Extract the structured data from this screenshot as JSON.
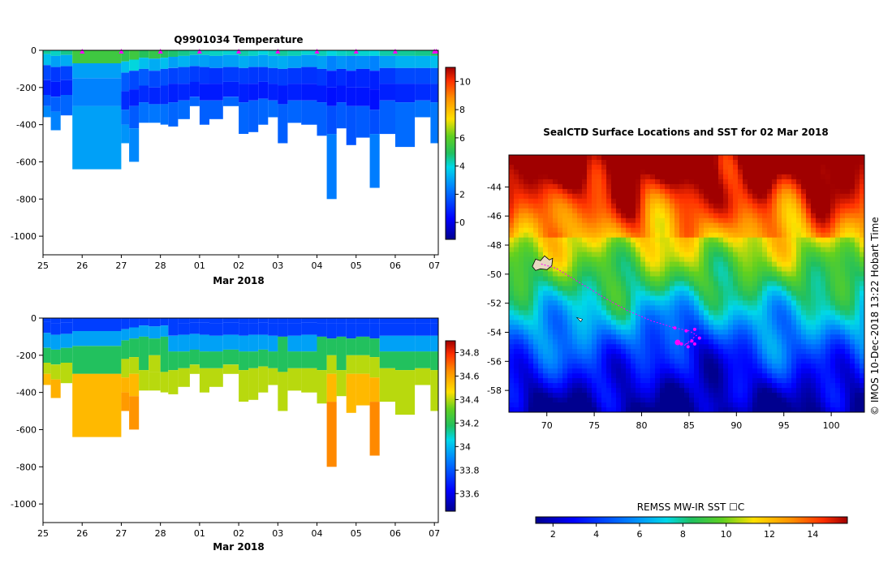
{
  "chart_data": [
    {
      "type": "heatmap",
      "id": "temperature",
      "title": "Q9901034  Temperature",
      "xlabel": "Mar 2018",
      "ylabel": "",
      "x_ticks": [
        "25",
        "26",
        "27",
        "28",
        "01",
        "02",
        "03",
        "04",
        "05",
        "06",
        "07"
      ],
      "x_range": [
        25,
        35.1
      ],
      "ylim": [
        -1100,
        0
      ],
      "y_ticks": [
        0,
        -200,
        -400,
        -600,
        -800,
        -1000
      ],
      "colorbar": {
        "min": -1.2,
        "max": 11,
        "ticks": [
          0,
          2,
          4,
          6,
          8,
          10
        ]
      },
      "profile_markers": [
        26,
        27,
        28,
        29,
        30,
        31,
        32,
        33,
        34,
        35,
        35.05
      ],
      "profiles": [
        {
          "t": 25.0,
          "depth": 360,
          "layers": [
            [
              0,
              4.5
            ],
            [
              20,
              3.5
            ],
            [
              80,
              1.5
            ],
            [
              160,
              0.8
            ],
            [
              240,
              1.8
            ],
            [
              300,
              2.6
            ]
          ]
        },
        {
          "t": 25.2,
          "depth": 430,
          "layers": [
            [
              0,
              4.2
            ],
            [
              30,
              3.0
            ],
            [
              90,
              1.2
            ],
            [
              170,
              0.7
            ],
            [
              250,
              1.9
            ],
            [
              330,
              2.5
            ]
          ]
        },
        {
          "t": 25.45,
          "depth": 350,
          "layers": [
            [
              0,
              4.6
            ],
            [
              25,
              3.2
            ],
            [
              85,
              1.4
            ],
            [
              160,
              0.9
            ],
            [
              240,
              2.0
            ]
          ]
        },
        {
          "t": 25.75,
          "depth": 640,
          "layers": [
            [
              0,
              5.5
            ],
            [
              70,
              3.0
            ],
            [
              150,
              2.5
            ],
            [
              300,
              3.0
            ]
          ]
        },
        {
          "t": 26.1,
          "depth": 640,
          "layers": [
            [
              0,
              5.5
            ],
            [
              70,
              3.0
            ],
            [
              150,
              2.5
            ],
            [
              300,
              3.0
            ]
          ]
        },
        {
          "t": 27.0,
          "depth": 500,
          "layers": [
            [
              0,
              5.2
            ],
            [
              60,
              3.5
            ],
            [
              120,
              1.8
            ],
            [
              220,
              1.0
            ],
            [
              320,
              2.2
            ],
            [
              400,
              2.8
            ]
          ]
        },
        {
          "t": 27.2,
          "depth": 600,
          "layers": [
            [
              0,
              5.5
            ],
            [
              50,
              4.0
            ],
            [
              110,
              1.5
            ],
            [
              210,
              0.8
            ],
            [
              300,
              1.8
            ],
            [
              420,
              2.6
            ]
          ]
        },
        {
          "t": 27.45,
          "depth": 390,
          "layers": [
            [
              0,
              5.0
            ],
            [
              40,
              3.5
            ],
            [
              100,
              1.8
            ],
            [
              190,
              1.0
            ],
            [
              280,
              2.2
            ]
          ]
        },
        {
          "t": 27.7,
          "depth": 390,
          "layers": [
            [
              0,
              5.3
            ],
            [
              45,
              3.2
            ],
            [
              110,
              1.5
            ],
            [
              200,
              0.9
            ],
            [
              290,
              2.3
            ]
          ]
        },
        {
          "t": 28.0,
          "depth": 400,
          "layers": [
            [
              0,
              5.0
            ],
            [
              40,
              3.5
            ],
            [
              100,
              1.6
            ],
            [
              190,
              1.0
            ],
            [
              290,
              2.2
            ]
          ]
        },
        {
          "t": 28.2,
          "depth": 410,
          "layers": [
            [
              0,
              4.8
            ],
            [
              35,
              3.0
            ],
            [
              95,
              1.4
            ],
            [
              180,
              0.8
            ],
            [
              280,
              2.0
            ]
          ]
        },
        {
          "t": 28.45,
          "depth": 370,
          "layers": [
            [
              0,
              4.6
            ],
            [
              30,
              3.3
            ],
            [
              90,
              1.5
            ],
            [
              180,
              0.9
            ],
            [
              270,
              2.1
            ]
          ]
        },
        {
          "t": 28.75,
          "depth": 300,
          "layers": [
            [
              0,
              4.4
            ],
            [
              25,
              3.0
            ],
            [
              85,
              1.3
            ],
            [
              170,
              0.8
            ],
            [
              250,
              2.0
            ]
          ]
        },
        {
          "t": 29.0,
          "depth": 400,
          "layers": [
            [
              0,
              4.3
            ],
            [
              25,
              3.0
            ],
            [
              90,
              1.2
            ],
            [
              180,
              0.7
            ],
            [
              270,
              1.9
            ]
          ]
        },
        {
          "t": 29.25,
          "depth": 370,
          "layers": [
            [
              0,
              4.2
            ],
            [
              30,
              2.8
            ],
            [
              95,
              1.1
            ],
            [
              180,
              0.7
            ],
            [
              270,
              1.9
            ]
          ]
        },
        {
          "t": 29.6,
          "depth": 300,
          "layers": [
            [
              0,
              4.1
            ],
            [
              25,
              3.0
            ],
            [
              90,
              1.3
            ],
            [
              170,
              0.8
            ],
            [
              250,
              2.0
            ]
          ]
        },
        {
          "t": 30.0,
          "depth": 450,
          "layers": [
            [
              0,
              4.4
            ],
            [
              30,
              3.2
            ],
            [
              95,
              1.3
            ],
            [
              180,
              0.8
            ],
            [
              280,
              2.0
            ]
          ]
        },
        {
          "t": 30.25,
          "depth": 440,
          "layers": [
            [
              0,
              4.2
            ],
            [
              30,
              3.0
            ],
            [
              90,
              1.2
            ],
            [
              180,
              0.7
            ],
            [
              270,
              1.9
            ]
          ]
        },
        {
          "t": 30.5,
          "depth": 400,
          "layers": [
            [
              0,
              4.0
            ],
            [
              25,
              3.0
            ],
            [
              90,
              1.2
            ],
            [
              170,
              0.7
            ],
            [
              260,
              2.0
            ]
          ]
        },
        {
          "t": 30.75,
          "depth": 360,
          "layers": [
            [
              0,
              4.2
            ],
            [
              30,
              3.1
            ],
            [
              95,
              1.3
            ],
            [
              180,
              0.8
            ],
            [
              270,
              2.1
            ]
          ]
        },
        {
          "t": 31.0,
          "depth": 500,
          "layers": [
            [
              0,
              4.5
            ],
            [
              30,
              3.2
            ],
            [
              100,
              1.3
            ],
            [
              190,
              0.7
            ],
            [
              290,
              1.9
            ]
          ]
        },
        {
          "t": 31.25,
          "depth": 390,
          "layers": [
            [
              0,
              4.3
            ],
            [
              30,
              3.0
            ],
            [
              95,
              1.2
            ],
            [
              180,
              0.8
            ],
            [
              270,
              2.0
            ]
          ]
        },
        {
          "t": 31.6,
          "depth": 400,
          "layers": [
            [
              0,
              4.1
            ],
            [
              25,
              2.9
            ],
            [
              90,
              1.1
            ],
            [
              180,
              0.7
            ],
            [
              270,
              1.9
            ]
          ]
        },
        {
          "t": 32.0,
          "depth": 460,
          "layers": [
            [
              0,
              4.3
            ],
            [
              30,
              3.0
            ],
            [
              100,
              1.2
            ],
            [
              190,
              0.7
            ],
            [
              280,
              1.9
            ]
          ]
        },
        {
          "t": 32.25,
          "depth": 800,
          "layers": [
            [
              0,
              4.0
            ],
            [
              30,
              2.5
            ],
            [
              110,
              0.8
            ],
            [
              200,
              0.5
            ],
            [
              300,
              1.6
            ],
            [
              450,
              2.4
            ]
          ]
        },
        {
          "t": 32.5,
          "depth": 420,
          "layers": [
            [
              0,
              4.2
            ],
            [
              30,
              2.8
            ],
            [
              100,
              1.0
            ],
            [
              190,
              0.6
            ],
            [
              280,
              1.8
            ]
          ]
        },
        {
          "t": 32.75,
          "depth": 510,
          "layers": [
            [
              0,
              4.3
            ],
            [
              30,
              2.6
            ],
            [
              110,
              0.8
            ],
            [
              200,
              0.6
            ],
            [
              300,
              1.7
            ]
          ]
        },
        {
          "t": 33.0,
          "depth": 470,
          "layers": [
            [
              0,
              4.1
            ],
            [
              30,
              2.7
            ],
            [
              100,
              0.9
            ],
            [
              200,
              0.6
            ],
            [
              300,
              1.8
            ]
          ]
        },
        {
          "t": 33.35,
          "depth": 740,
          "layers": [
            [
              0,
              4.0
            ],
            [
              30,
              2.5
            ],
            [
              110,
              0.8
            ],
            [
              210,
              0.5
            ],
            [
              320,
              1.6
            ],
            [
              450,
              2.4
            ]
          ]
        },
        {
          "t": 33.6,
          "depth": 450,
          "layers": [
            [
              0,
              4.4
            ],
            [
              30,
              3.0
            ],
            [
              95,
              1.2
            ],
            [
              180,
              0.8
            ],
            [
              270,
              1.9
            ]
          ]
        },
        {
          "t": 34.0,
          "depth": 520,
          "layers": [
            [
              0,
              4.5
            ],
            [
              30,
              3.3
            ],
            [
              95,
              1.5
            ],
            [
              180,
              0.9
            ],
            [
              280,
              2.1
            ]
          ]
        },
        {
          "t": 34.5,
          "depth": 360,
          "layers": [
            [
              0,
              4.6
            ],
            [
              30,
              3.3
            ],
            [
              95,
              1.5
            ],
            [
              180,
              1.0
            ],
            [
              270,
              2.2
            ]
          ]
        },
        {
          "t": 34.9,
          "depth": 500,
          "layers": [
            [
              0,
              4.8
            ],
            [
              30,
              3.5
            ],
            [
              95,
              1.7
            ],
            [
              180,
              1.1
            ],
            [
              280,
              2.3
            ]
          ]
        }
      ]
    },
    {
      "type": "heatmap",
      "id": "salinity",
      "title": "",
      "xlabel": "Mar 2018",
      "ylabel": "",
      "x_ticks": [
        "25",
        "26",
        "27",
        "28",
        "01",
        "02",
        "03",
        "04",
        "05",
        "06",
        "07"
      ],
      "x_range": [
        25,
        35.1
      ],
      "ylim": [
        -1100,
        0
      ],
      "y_ticks": [
        0,
        -200,
        -400,
        -600,
        -800,
        -1000
      ],
      "colorbar": {
        "min": 33.45,
        "max": 34.9,
        "ticks": [
          33.6,
          33.8,
          34.0,
          34.2,
          34.4,
          34.6,
          34.8
        ],
        "labels": [
          "33.6",
          "33.8",
          "34",
          "34.2",
          "34.4",
          "34.6",
          "34.8"
        ]
      }
    },
    {
      "type": "heatmap",
      "id": "sst_map",
      "title": "SealCTD Surface Locations and SST for 02 Mar 2018",
      "xlabel": "",
      "ylabel": "",
      "x_range": [
        66,
        103.5
      ],
      "ylim": [
        -59.5,
        -41.8
      ],
      "x_ticks": [
        70,
        75,
        80,
        85,
        90,
        95,
        100
      ],
      "y_ticks": [
        -44,
        -46,
        -48,
        -50,
        -52,
        -54,
        -56,
        -58
      ],
      "colorbar": {
        "label": "REMSS MW-IR SST ☐C",
        "min": 1.2,
        "max": 15.6,
        "ticks": [
          2,
          4,
          6,
          8,
          10,
          12,
          14
        ]
      },
      "side_label": "©  IMOS 10-Dec-2018 13:22 Hobart Time",
      "track": [
        [
          69.4,
          -49.3
        ],
        [
          71.0,
          -49.6
        ],
        [
          73.5,
          -50.6
        ],
        [
          76.0,
          -51.6
        ],
        [
          78.5,
          -52.5
        ],
        [
          81.0,
          -53.2
        ],
        [
          83.5,
          -53.7
        ],
        [
          85.0,
          -53.9
        ],
        [
          85.8,
          -54.2
        ],
        [
          84.5,
          -54.9
        ],
        [
          85.3,
          -54.6
        ]
      ],
      "track_points": [
        [
          83.5,
          -53.7
        ],
        [
          84.7,
          -53.9
        ],
        [
          85.6,
          -53.8
        ],
        [
          86.1,
          -54.4
        ],
        [
          85.6,
          -54.8
        ],
        [
          84.9,
          -55.0
        ],
        [
          84.2,
          -54.8
        ],
        [
          85.3,
          -54.6
        ]
      ],
      "highlight": [
        83.8,
        -54.7
      ],
      "island_marker": [
        73.5,
        -53.1
      ],
      "kerguelen": [
        69.5,
        -49.3
      ]
    }
  ],
  "colors": {
    "track": "#ff00ff",
    "frame": "#000000"
  }
}
